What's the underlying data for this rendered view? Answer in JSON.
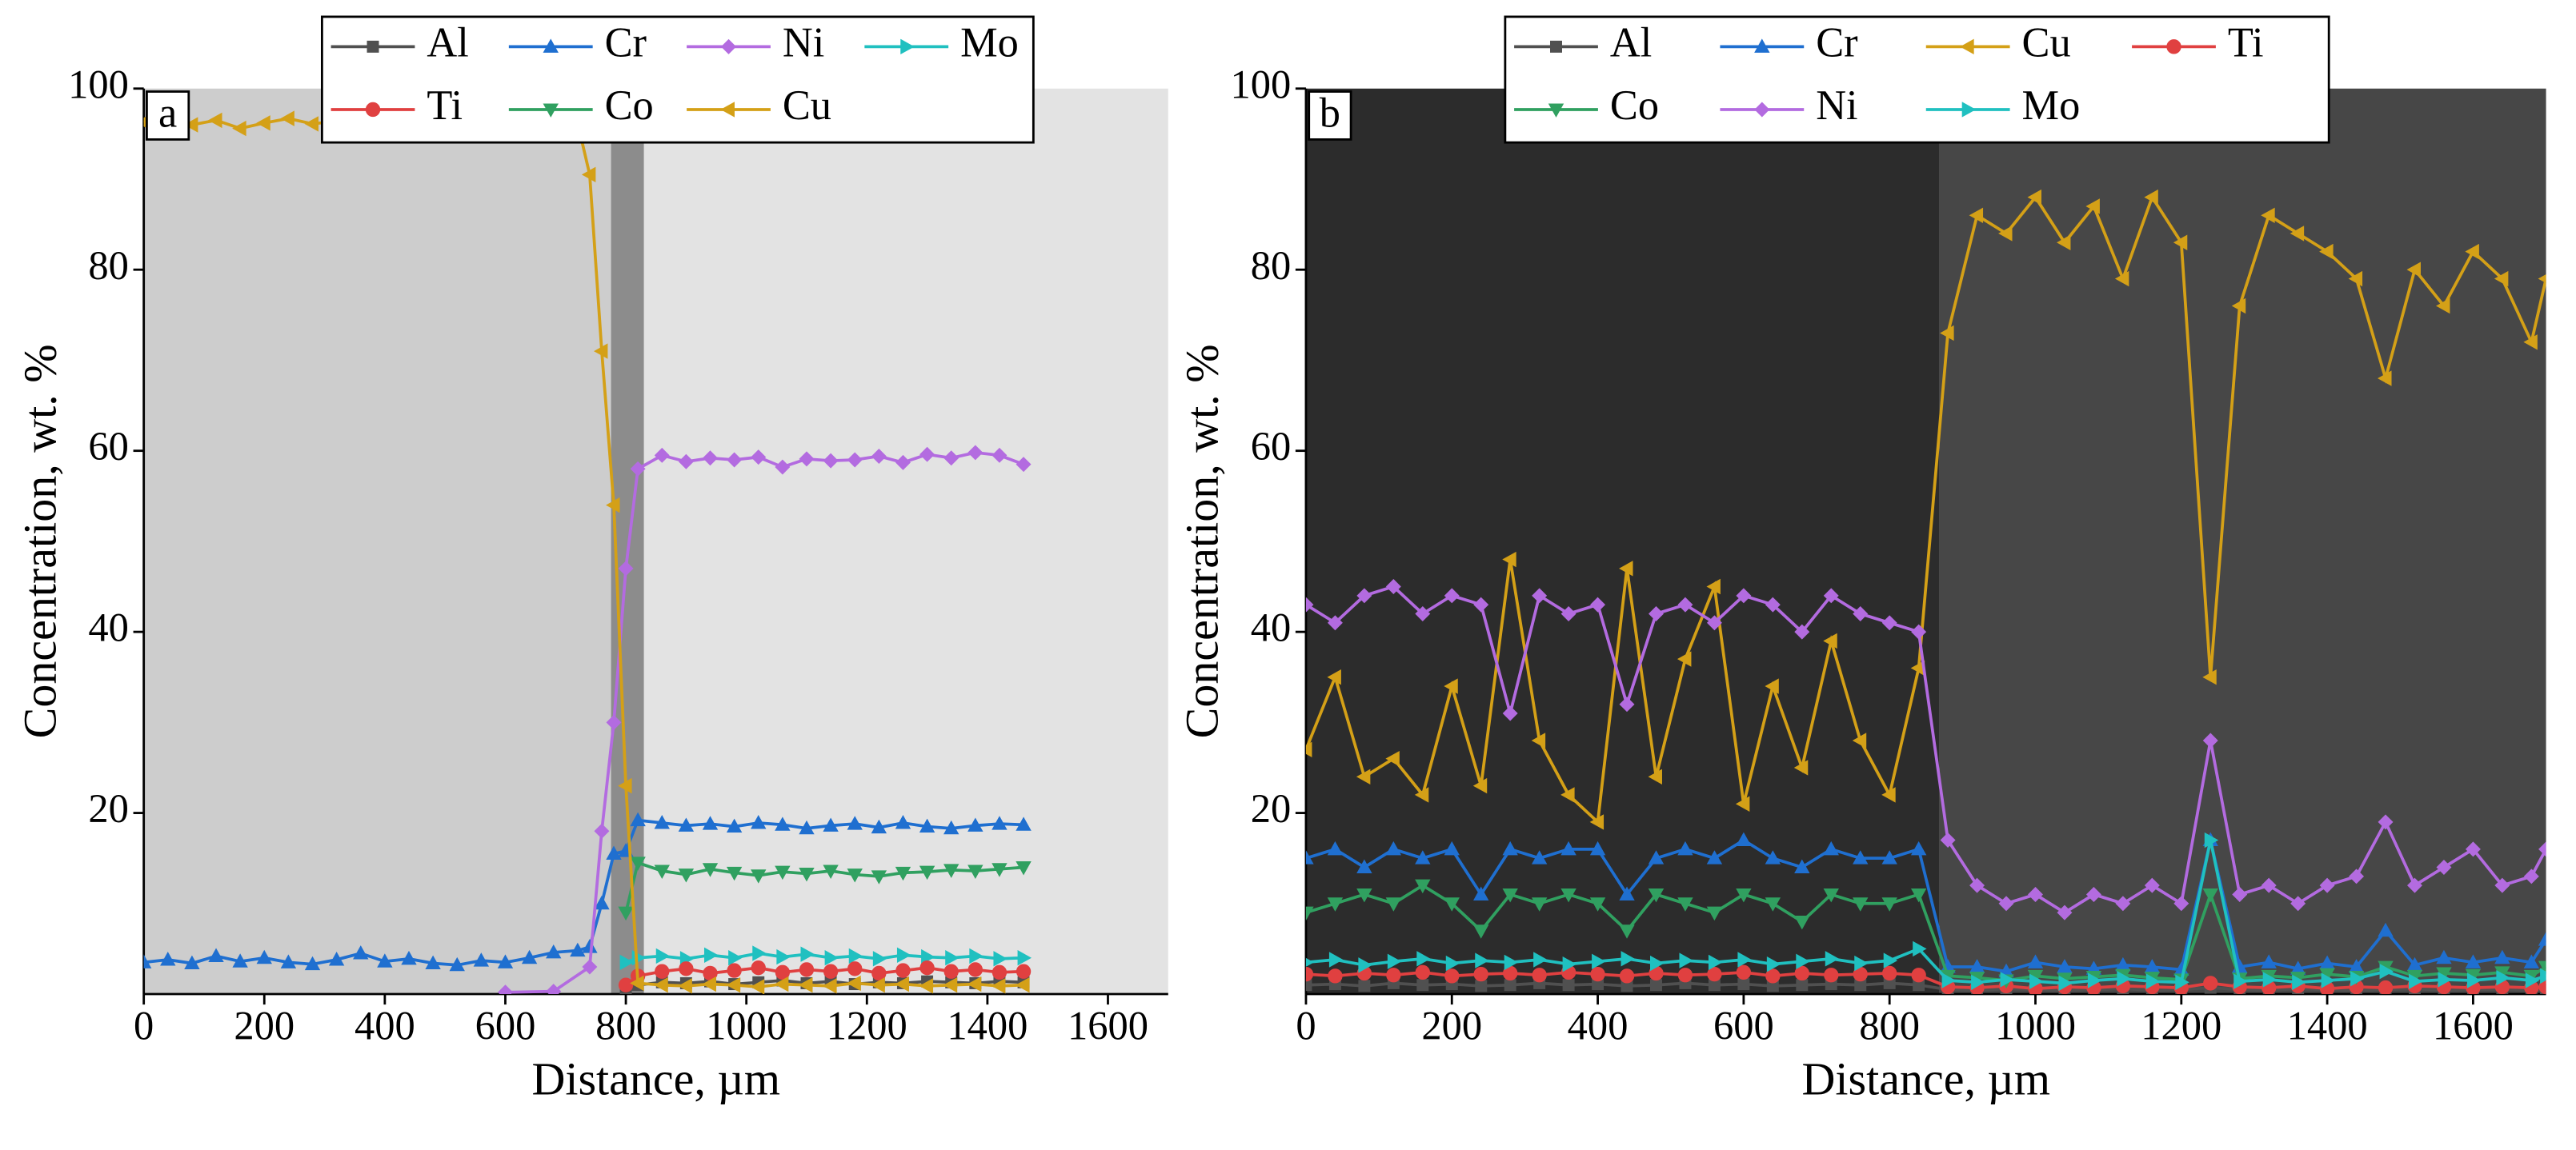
{
  "chart_data": [
    {
      "type": "line",
      "panel_label": "a",
      "xlabel": "Distance, µm",
      "ylabel": "Concentration, wt. %",
      "xlim": [
        0,
        1700
      ],
      "ylim": [
        0,
        100
      ],
      "xticks": [
        0,
        200,
        400,
        600,
        800,
        1000,
        1200,
        1400,
        1600
      ],
      "yticks": [
        20,
        40,
        60,
        80,
        100
      ],
      "grid": false,
      "series": [
        {
          "name": "Al",
          "color": "#505050",
          "marker": "square",
          "x": [
            800,
            820,
            860,
            900,
            940,
            980,
            1020,
            1060,
            1100,
            1140,
            1180,
            1220,
            1260,
            1300,
            1340,
            1380,
            1420,
            1460
          ],
          "values": [
            0.5,
            1.0,
            1.3,
            1.2,
            1.4,
            1.1,
            1.3,
            1.5,
            1.2,
            1.4,
            1.1,
            1.3,
            1.2,
            1.4,
            1.3,
            1.2,
            1.4,
            1.3
          ]
        },
        {
          "name": "Cr",
          "color": "#1f6fd0",
          "marker": "triangle-up",
          "x": [
            0,
            40,
            80,
            120,
            160,
            200,
            240,
            280,
            320,
            360,
            400,
            440,
            480,
            520,
            560,
            600,
            640,
            680,
            720,
            740,
            760,
            780,
            800,
            820,
            860,
            900,
            940,
            980,
            1020,
            1060,
            1100,
            1140,
            1180,
            1220,
            1260,
            1300,
            1340,
            1380,
            1420,
            1460
          ],
          "values": [
            3.5,
            3.8,
            3.4,
            4.2,
            3.6,
            4.0,
            3.5,
            3.3,
            3.8,
            4.5,
            3.6,
            3.9,
            3.4,
            3.2,
            3.7,
            3.5,
            4.0,
            4.6,
            4.8,
            5.2,
            10,
            15.5,
            15.8,
            19.2,
            18.9,
            18.6,
            18.8,
            18.5,
            18.9,
            18.7,
            18.3,
            18.6,
            18.8,
            18.4,
            18.9,
            18.5,
            18.3,
            18.6,
            18.8,
            18.7
          ]
        },
        {
          "name": "Ni",
          "color": "#b36be0",
          "marker": "diamond",
          "x": [
            600,
            680,
            740,
            760,
            780,
            800,
            820,
            860,
            900,
            940,
            980,
            1020,
            1060,
            1100,
            1140,
            1180,
            1220,
            1260,
            1300,
            1340,
            1380,
            1420,
            1460
          ],
          "values": [
            0.2,
            0.3,
            3,
            18,
            30,
            47,
            58,
            59.5,
            58.8,
            59.2,
            59.0,
            59.3,
            58.2,
            59.1,
            58.9,
            59.0,
            59.4,
            58.7,
            59.6,
            59.2,
            59.8,
            59.5,
            58.5
          ]
        },
        {
          "name": "Mo",
          "color": "#20c0c0",
          "marker": "triangle-right",
          "x": [
            800,
            820,
            860,
            900,
            940,
            980,
            1020,
            1060,
            1100,
            1140,
            1180,
            1220,
            1260,
            1300,
            1340,
            1380,
            1420,
            1460
          ],
          "values": [
            3.5,
            4.0,
            4.2,
            3.9,
            4.3,
            4.0,
            4.5,
            4.1,
            4.4,
            4.0,
            4.2,
            3.9,
            4.3,
            4.1,
            4.0,
            4.2,
            3.9,
            4.0
          ]
        },
        {
          "name": "Ti",
          "color": "#e04040",
          "marker": "circle",
          "x": [
            800,
            820,
            860,
            900,
            940,
            980,
            1020,
            1060,
            1100,
            1140,
            1180,
            1220,
            1260,
            1300,
            1340,
            1380,
            1420,
            1460
          ],
          "values": [
            1.0,
            2.0,
            2.5,
            2.8,
            2.3,
            2.6,
            2.9,
            2.4,
            2.7,
            2.5,
            2.8,
            2.3,
            2.6,
            2.9,
            2.5,
            2.7,
            2.4,
            2.5
          ]
        },
        {
          "name": "Co",
          "color": "#30a060",
          "marker": "triangle-down",
          "x": [
            800,
            820,
            860,
            900,
            940,
            980,
            1020,
            1060,
            1100,
            1140,
            1180,
            1220,
            1260,
            1300,
            1340,
            1380,
            1420,
            1460
          ],
          "values": [
            9,
            14.5,
            13.6,
            13.2,
            13.8,
            13.4,
            13.1,
            13.5,
            13.3,
            13.6,
            13.2,
            13.0,
            13.4,
            13.5,
            13.7,
            13.6,
            13.8,
            14.0
          ]
        },
        {
          "name": "Cu",
          "color": "#d4a017",
          "marker": "triangle-left",
          "x": [
            0,
            40,
            80,
            120,
            160,
            200,
            240,
            280,
            320,
            360,
            400,
            440,
            480,
            520,
            560,
            600,
            640,
            680,
            720,
            740,
            760,
            780,
            800,
            820,
            860,
            900,
            940,
            980,
            1020,
            1060,
            1100,
            1140,
            1180,
            1220,
            1260,
            1300,
            1340,
            1380,
            1420,
            1460
          ],
          "values": [
            96.3,
            96.8,
            96.0,
            96.5,
            95.6,
            96.2,
            96.7,
            96.1,
            96.4,
            96.0,
            96.5,
            96.2,
            96.6,
            96.0,
            96.3,
            96.5,
            96.1,
            96.4,
            96.2,
            90.5,
            71,
            54,
            23,
            1.2,
            1.0,
            0.9,
            1.1,
            1.0,
            0.8,
            1.1,
            1.0,
            0.9,
            1.2,
            1.0,
            1.1,
            0.9,
            1.0,
            1.1,
            0.9,
            1.0
          ]
        }
      ]
    },
    {
      "type": "line",
      "panel_label": "b",
      "xlabel": "Distance, µm",
      "ylabel": "Concentration, wt. %",
      "xlim": [
        0,
        1700
      ],
      "ylim": [
        0,
        100
      ],
      "xticks": [
        0,
        200,
        400,
        600,
        800,
        1000,
        1200,
        1400,
        1600
      ],
      "yticks": [
        20,
        40,
        60,
        80,
        100
      ],
      "grid": false,
      "x": [
        0,
        40,
        80,
        120,
        160,
        200,
        240,
        280,
        320,
        360,
        400,
        440,
        480,
        520,
        560,
        600,
        640,
        680,
        720,
        760,
        800,
        840,
        880,
        920,
        960,
        1000,
        1040,
        1080,
        1120,
        1160,
        1200,
        1240,
        1280,
        1320,
        1360,
        1400,
        1440,
        1480,
        1520,
        1560,
        1600,
        1640,
        1680,
        1700
      ],
      "series": [
        {
          "name": "Al",
          "color": "#505050",
          "marker": "square",
          "values": [
            1.0,
            1.1,
            0.9,
            1.2,
            1.0,
            1.1,
            0.9,
            1.0,
            1.2,
            1.0,
            1.1,
            0.9,
            1.0,
            1.2,
            1.0,
            1.1,
            0.9,
            1.0,
            1.1,
            1.0,
            1.2,
            1.0,
            0.5,
            0.4,
            0.6,
            0.5,
            0.4,
            0.5,
            0.6,
            0.4,
            0.5,
            0.7,
            0.5,
            0.4,
            0.6,
            0.5,
            0.4,
            0.5,
            0.6,
            0.4,
            0.5,
            0.5,
            0.4,
            0.5
          ]
        },
        {
          "name": "Cr",
          "color": "#1f6fd0",
          "marker": "triangle-up",
          "values": [
            15,
            16,
            14,
            16,
            15,
            16,
            11,
            16,
            15,
            16,
            16,
            11,
            15,
            16,
            15,
            17,
            15,
            14,
            16,
            15,
            15,
            16,
            3,
            3,
            2.5,
            3.5,
            3,
            2.8,
            3.2,
            3,
            2.7,
            17,
            3,
            3.5,
            2.8,
            3.4,
            3,
            7,
            3.2,
            4,
            3.5,
            4,
            3.5,
            6
          ]
        },
        {
          "name": "Cu",
          "color": "#d4a017",
          "marker": "triangle-left",
          "values": [
            27,
            35,
            24,
            26,
            22,
            34,
            23,
            48,
            28,
            22,
            19,
            47,
            24,
            37,
            45,
            21,
            34,
            25,
            39,
            28,
            22,
            36,
            73,
            86,
            84,
            88,
            83,
            87,
            79,
            88,
            83,
            35,
            76,
            86,
            84,
            82,
            79,
            68,
            80,
            76,
            82,
            79,
            72,
            79
          ]
        },
        {
          "name": "Ti",
          "color": "#e04040",
          "marker": "circle",
          "values": [
            2.2,
            2.0,
            2.3,
            2.1,
            2.4,
            2.0,
            2.2,
            2.3,
            2.1,
            2.4,
            2.2,
            2.0,
            2.3,
            2.1,
            2.2,
            2.4,
            2.0,
            2.3,
            2.1,
            2.2,
            2.3,
            2.1,
            0.8,
            0.7,
            0.9,
            0.6,
            0.8,
            0.7,
            0.9,
            0.8,
            0.7,
            1.2,
            0.8,
            0.7,
            0.9,
            0.6,
            0.8,
            0.7,
            0.9,
            0.8,
            0.7,
            0.8,
            0.7,
            0.8
          ]
        },
        {
          "name": "Co",
          "color": "#30a060",
          "marker": "triangle-down",
          "values": [
            9,
            10,
            11,
            10,
            12,
            10,
            7,
            11,
            10,
            11,
            10,
            7,
            11,
            10,
            9,
            11,
            10,
            8,
            11,
            10,
            10,
            11,
            2,
            1.8,
            1.5,
            2,
            1.7,
            1.9,
            2.1,
            1.8,
            1.6,
            11,
            1.7,
            2,
            1.8,
            2.2,
            1.9,
            3,
            2,
            2.3,
            2.1,
            2.4,
            2,
            3
          ]
        },
        {
          "name": "Ni",
          "color": "#b36be0",
          "marker": "diamond",
          "values": [
            43,
            41,
            44,
            45,
            42,
            44,
            43,
            31,
            44,
            42,
            43,
            32,
            42,
            43,
            41,
            44,
            43,
            40,
            44,
            42,
            41,
            40,
            17,
            12,
            10,
            11,
            9,
            11,
            10,
            12,
            10,
            28,
            11,
            12,
            10,
            12,
            13,
            19,
            12,
            14,
            16,
            12,
            13,
            16
          ]
        },
        {
          "name": "Mo",
          "color": "#20c0c0",
          "marker": "triangle-right",
          "values": [
            3.5,
            3.8,
            3.2,
            3.6,
            3.9,
            3.4,
            3.7,
            3.5,
            3.8,
            3.3,
            3.6,
            3.9,
            3.4,
            3.7,
            3.5,
            3.8,
            3.3,
            3.6,
            3.9,
            3.4,
            3.7,
            5,
            1.5,
            1.3,
            1.6,
            1.4,
            1.2,
            1.5,
            1.7,
            1.4,
            1.3,
            17,
            1.4,
            1.6,
            1.3,
            1.5,
            1.7,
            2.5,
            1.4,
            1.6,
            1.5,
            1.8,
            1.5,
            2
          ]
        }
      ]
    }
  ]
}
